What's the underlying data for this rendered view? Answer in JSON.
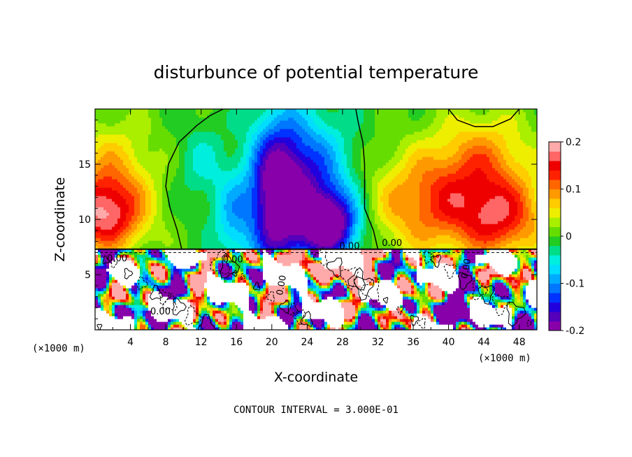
{
  "chart_data": {
    "type": "heatmap",
    "title": "disturbunce of potential temperature",
    "xlabel": "X-coordinate",
    "ylabel": "Z-coordinate",
    "x_unit": "(×1000 m)",
    "y_unit": "(×1000 m)",
    "x_ticks": [
      4,
      8,
      12,
      16,
      20,
      24,
      28,
      32,
      36,
      40,
      44,
      48
    ],
    "y_ticks": [
      5,
      10,
      15
    ],
    "xlim": [
      0,
      50
    ],
    "ylim": [
      0,
      20
    ],
    "colorbar": {
      "range": [
        -0.2,
        0.2
      ],
      "tick_labels": [
        "0.2",
        "0.1",
        "0",
        "-0.1",
        "-0.2"
      ],
      "tick_values": [
        0.2,
        0.1,
        0,
        -0.1,
        -0.2
      ],
      "colors": [
        "#8800aa",
        "#5500bb",
        "#2200dd",
        "#0033ff",
        "#0077ff",
        "#00aaff",
        "#00ddff",
        "#00eedd",
        "#00dd88",
        "#22cc22",
        "#66dd00",
        "#aaee00",
        "#eeee00",
        "#ffcc00",
        "#ff9900",
        "#ff6600",
        "#ff2200",
        "#ee0000",
        "#ff6666",
        "#ffaaaa"
      ]
    },
    "contour_labels": [
      "0.00",
      "0.00",
      "0.00",
      "0.00",
      "0.00",
      "0.00",
      "0.00"
    ],
    "annotation": "CONTOUR INTERVAL = 3.000E-01"
  }
}
